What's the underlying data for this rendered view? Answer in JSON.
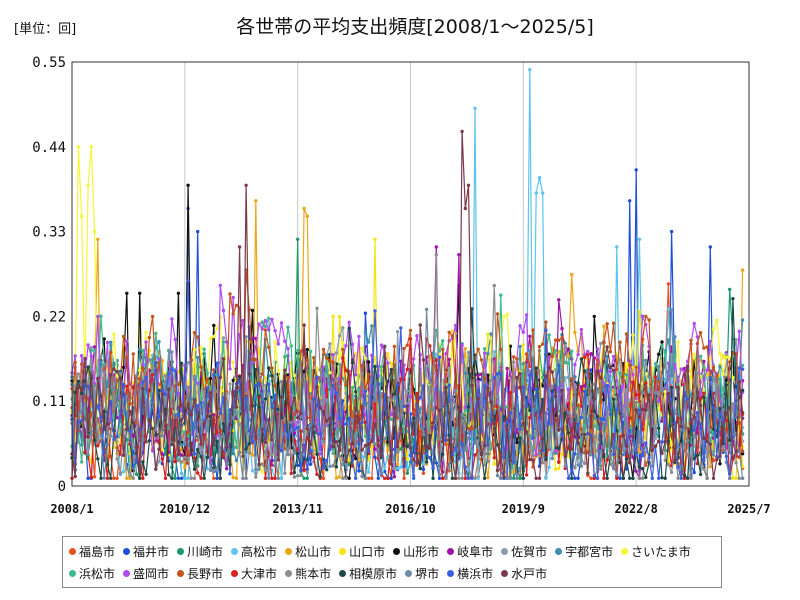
{
  "chart_data": {
    "type": "line",
    "title": "各世帯の平均支出頻度[2008/1～2025/5]",
    "unit_label": "[単位：回]",
    "x_start": "2008/1",
    "x_end": "2025/7",
    "x_ticks": [
      "2008/1",
      "2010/12",
      "2013/11",
      "2016/10",
      "2019/9",
      "2022/8",
      "2025/7"
    ],
    "y_ticks": [
      "0",
      "0.11",
      "0.22",
      "0.33",
      "0.44",
      "0.55"
    ],
    "ylim": [
      0,
      0.55
    ],
    "grid": "vertical",
    "legend_position": "bottom",
    "series": [
      {
        "name": "福島市",
        "color": "#e8501c"
      },
      {
        "name": "福井市",
        "color": "#1f4fd6"
      },
      {
        "name": "川崎市",
        "color": "#1a9a6c"
      },
      {
        "name": "高松市",
        "color": "#5ec3ee"
      },
      {
        "name": "松山市",
        "color": "#eda519"
      },
      {
        "name": "山口市",
        "color": "#f7e30f"
      },
      {
        "name": "山形市",
        "color": "#111111"
      },
      {
        "name": "岐阜市",
        "color": "#a014a8"
      },
      {
        "name": "佐賀市",
        "color": "#8a9aa8"
      },
      {
        "name": "宇都宮市",
        "color": "#3c8fb3"
      },
      {
        "name": "さいたま市",
        "color": "#f5f53a"
      },
      {
        "name": "浜松市",
        "color": "#40b88c"
      },
      {
        "name": "盛岡市",
        "color": "#b24bf0"
      },
      {
        "name": "長野市",
        "color": "#c4541c"
      },
      {
        "name": "大津市",
        "color": "#d81e1e"
      },
      {
        "name": "熊本市",
        "color": "#8c8c8c"
      },
      {
        "name": "相模原市",
        "color": "#1e4a4a"
      },
      {
        "name": "堺市",
        "color": "#6e8aa5"
      },
      {
        "name": "横浜市",
        "color": "#3a5ee0"
      },
      {
        "name": "水戸市",
        "color": "#7a3a4c"
      }
    ]
  }
}
